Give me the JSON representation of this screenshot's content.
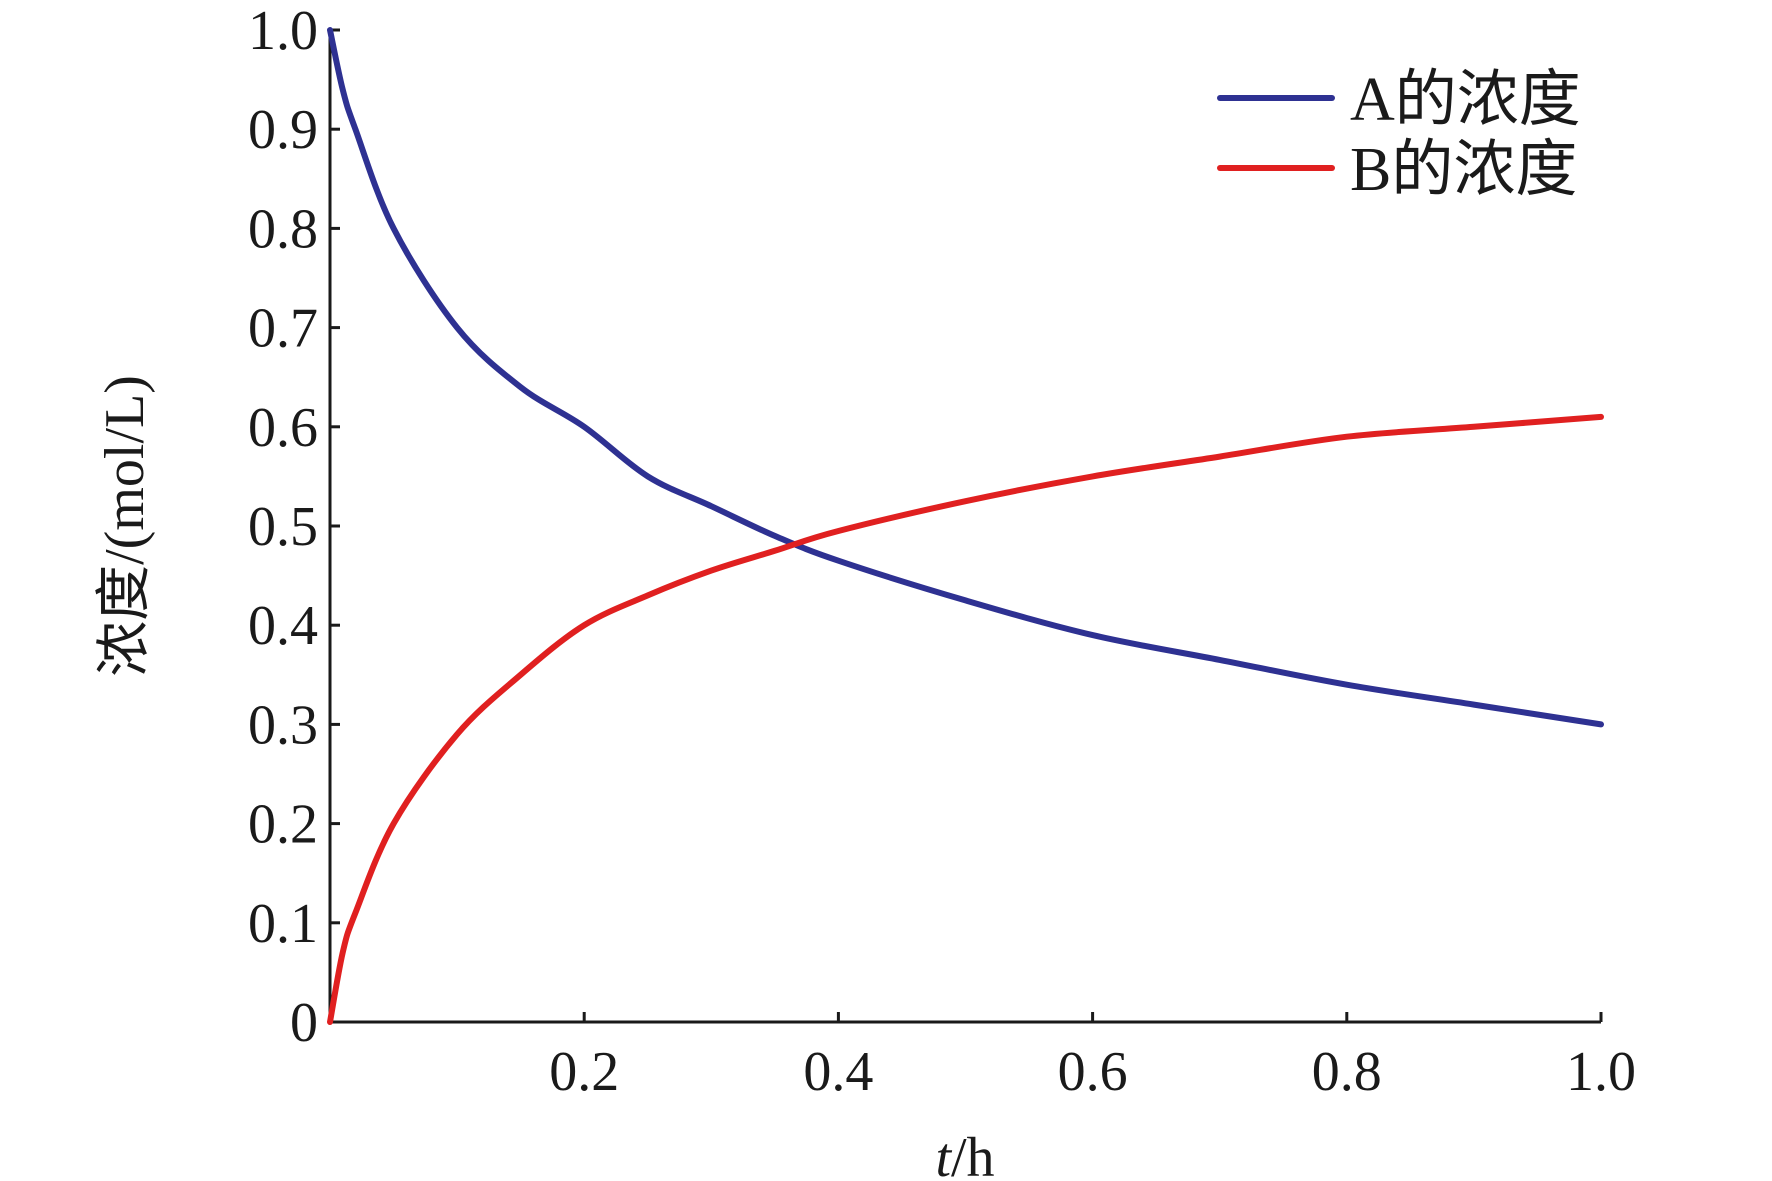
{
  "chart_data": {
    "type": "line",
    "xlabel_var": "t",
    "xlabel_unit": "/h",
    "ylabel": "浓度/(mol/L)",
    "xlim": [
      0,
      1.0
    ],
    "ylim": [
      0,
      1.0
    ],
    "x_ticks": [
      "0.2",
      "0.4",
      "0.6",
      "0.8",
      "1.0"
    ],
    "y_ticks": [
      "0",
      "0.1",
      "0.2",
      "0.3",
      "0.4",
      "0.5",
      "0.6",
      "0.7",
      "0.8",
      "0.9",
      "1.0"
    ],
    "grid": false,
    "legend_position": "top-right",
    "x": [
      0,
      0.01,
      0.02,
      0.05,
      0.1,
      0.15,
      0.2,
      0.25,
      0.3,
      0.35,
      0.4,
      0.5,
      0.6,
      0.7,
      0.8,
      0.9,
      1.0
    ],
    "series": [
      {
        "name": "A的浓度",
        "color": "#2e3192",
        "values": [
          1.0,
          0.94,
          0.9,
          0.8,
          0.7,
          0.64,
          0.6,
          0.55,
          0.52,
          0.49,
          0.465,
          0.425,
          0.39,
          0.365,
          0.34,
          0.32,
          0.3
        ]
      },
      {
        "name": "B的浓度",
        "color": "#e02020",
        "values": [
          0.0,
          0.07,
          0.11,
          0.2,
          0.29,
          0.35,
          0.4,
          0.43,
          0.455,
          0.475,
          0.495,
          0.525,
          0.55,
          0.57,
          0.59,
          0.6,
          0.61
        ]
      }
    ]
  }
}
